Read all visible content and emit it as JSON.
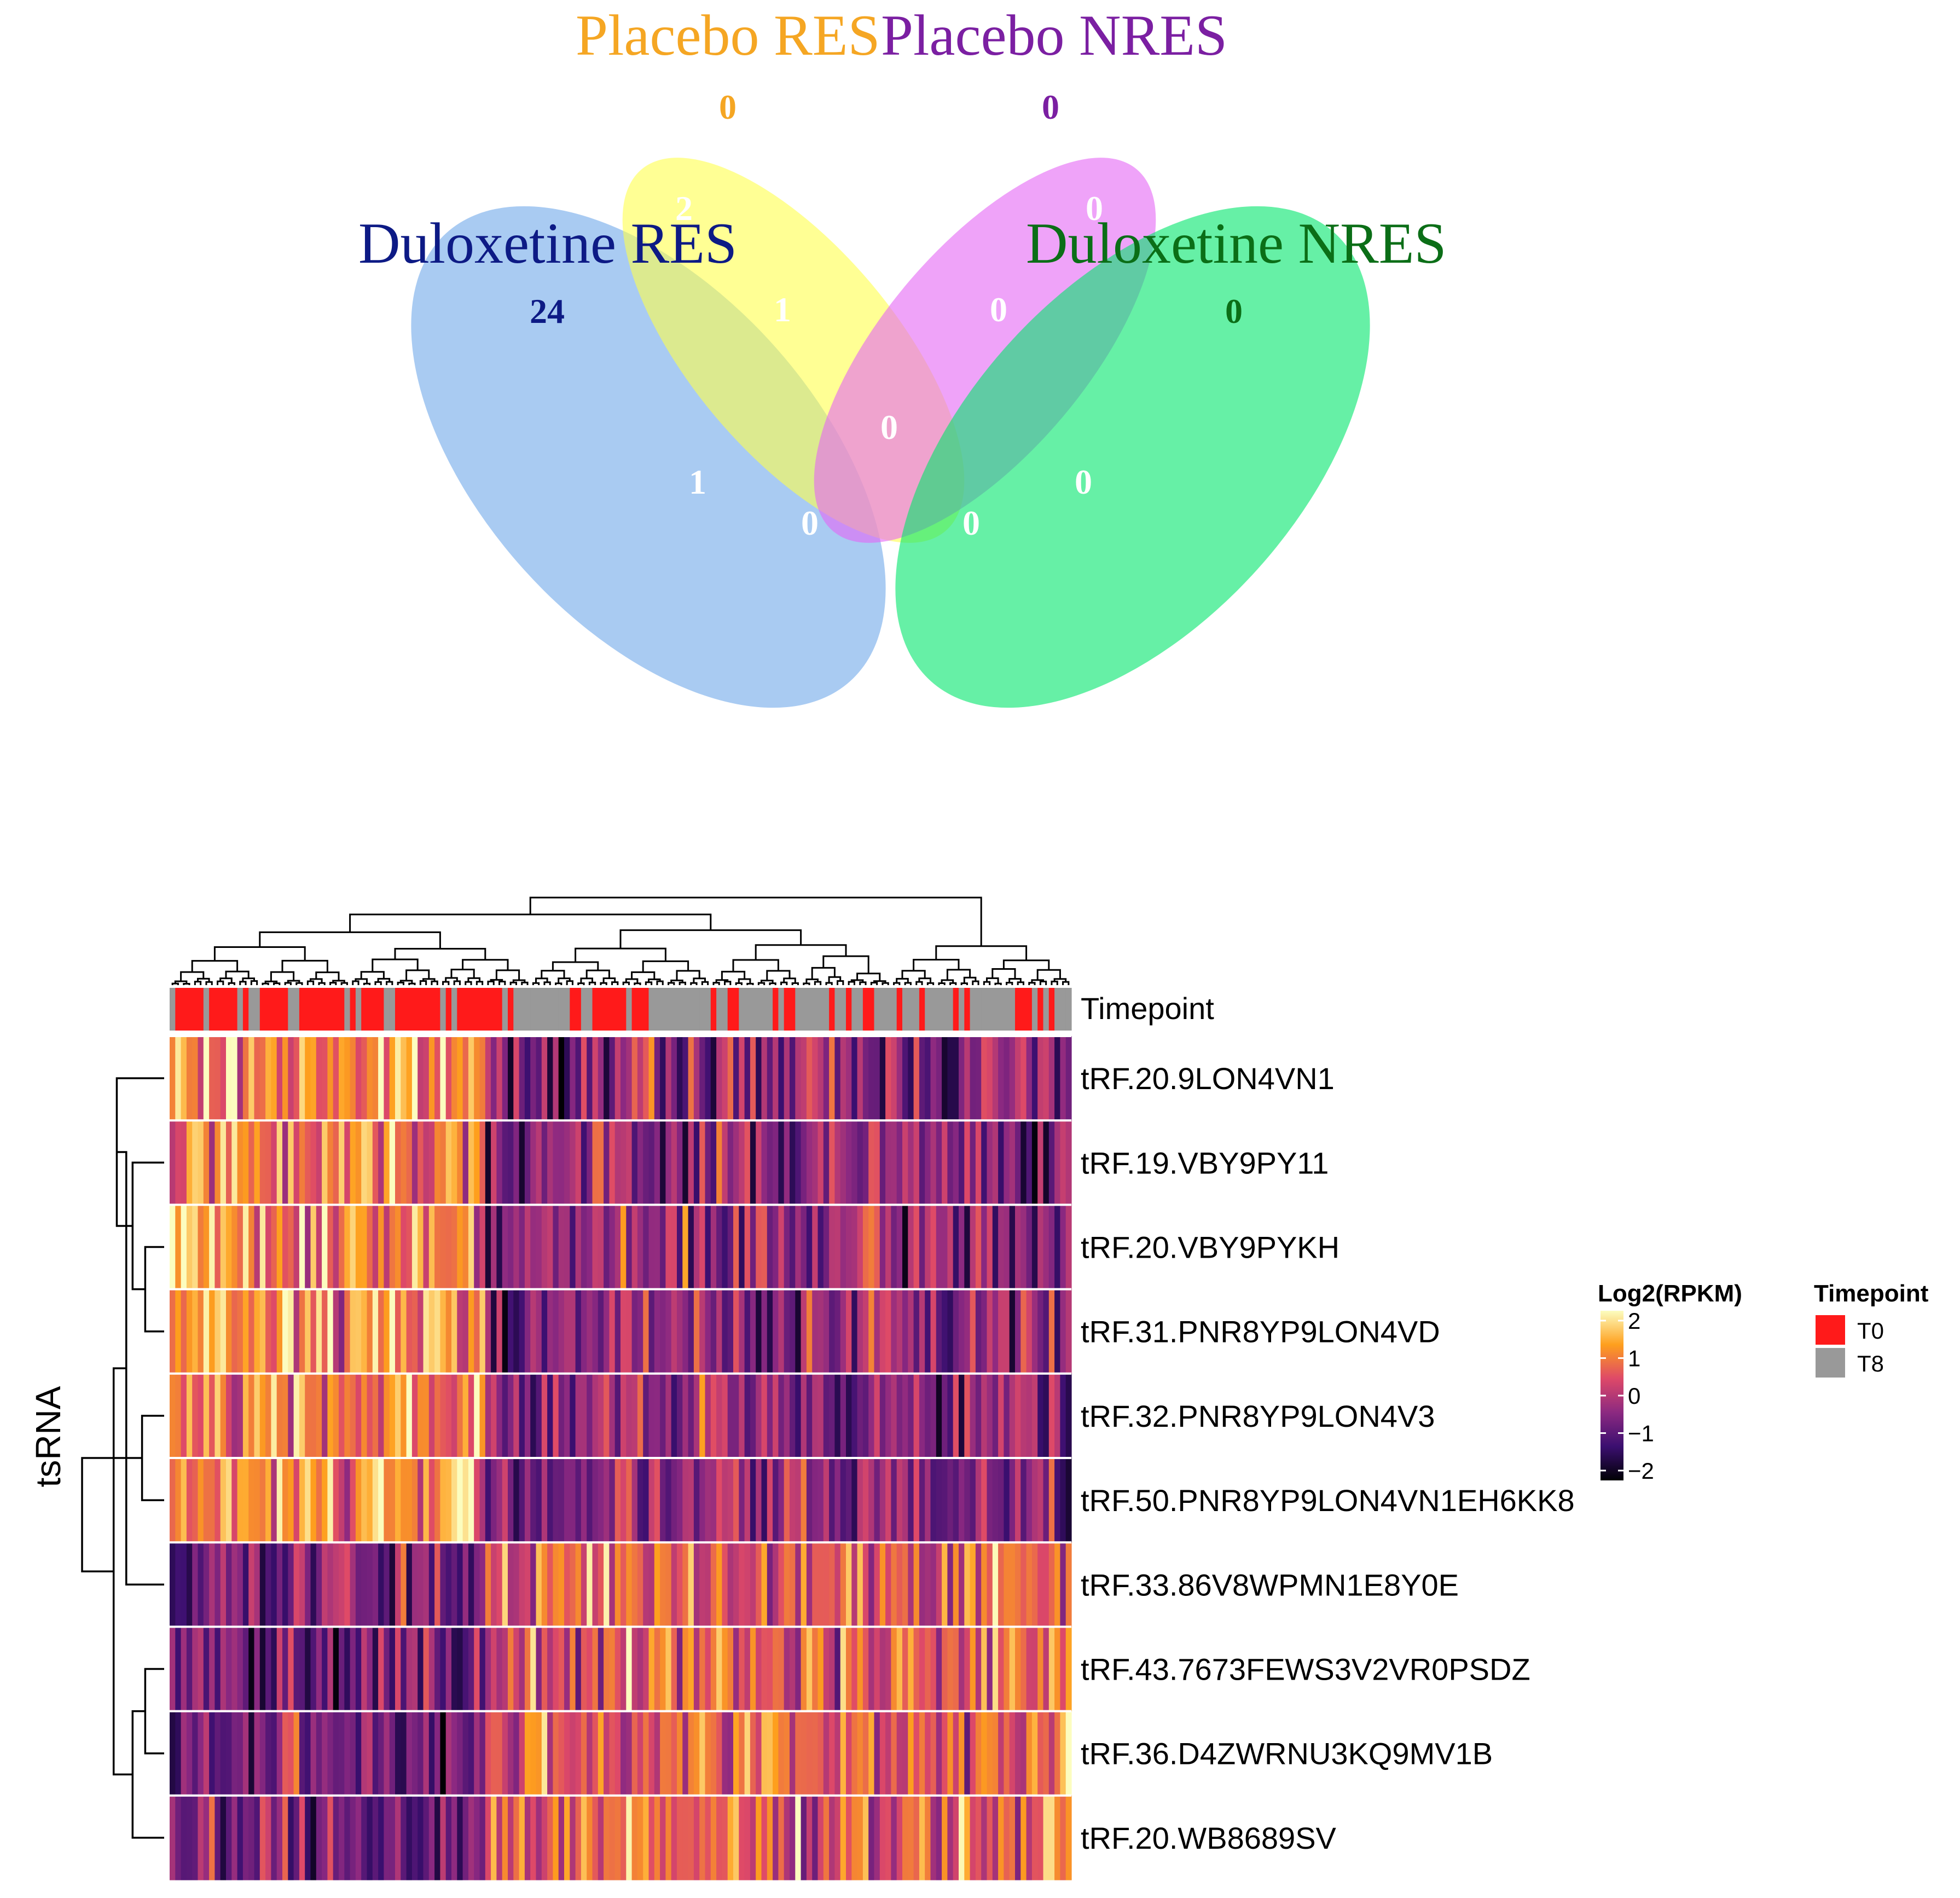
{
  "chart_data": [
    {
      "type": "venn",
      "sets": [
        {
          "key": "dul_res",
          "name": "Duloxetine RES",
          "color": "#6fa8ea",
          "text_color": "#0d1a85"
        },
        {
          "key": "pla_res",
          "name": "Placebo RES",
          "color": "#ffff4d",
          "text_color": "#f5a623"
        },
        {
          "key": "pla_nres",
          "name": "Placebo NRES",
          "color": "#e566f5",
          "text_color": "#7b1fa2"
        },
        {
          "key": "dul_nres",
          "name": "Duloxetine NRES",
          "color": "#00e66a",
          "text_color": "#0b6e17"
        }
      ],
      "regions": [
        {
          "sets": [
            "dul_res"
          ],
          "count": "24",
          "color": "#0d1a85"
        },
        {
          "sets": [
            "pla_res"
          ],
          "count": "0",
          "color": "#f5a623"
        },
        {
          "sets": [
            "pla_nres"
          ],
          "count": "0",
          "color": "#7b1fa2"
        },
        {
          "sets": [
            "dul_nres"
          ],
          "count": "0",
          "color": "#0b6e17"
        },
        {
          "sets": [
            "dul_res",
            "pla_res"
          ],
          "count": "2",
          "color": "#ffffff"
        },
        {
          "sets": [
            "pla_res",
            "pla_nres"
          ],
          "count": "0",
          "color": "#ffffff"
        },
        {
          "sets": [
            "pla_nres",
            "dul_nres"
          ],
          "count": "0",
          "color": "#ffffff"
        },
        {
          "sets": [
            "dul_res",
            "pla_res",
            "pla_nres"
          ],
          "count": "1",
          "color": "#ffffff"
        },
        {
          "sets": [
            "pla_res",
            "pla_nres",
            "dul_nres"
          ],
          "count": "0",
          "color": "#ffffff"
        },
        {
          "sets": [
            "dul_res",
            "pla_res",
            "pla_nres",
            "dul_nres"
          ],
          "count": "0",
          "color": "#ffffff"
        },
        {
          "sets": [
            "dul_res",
            "pla_nres"
          ],
          "count": "1",
          "color": "#ffffff"
        },
        {
          "sets": [
            "pla_res",
            "dul_nres"
          ],
          "count": "0",
          "color": "#ffffff"
        },
        {
          "sets": [
            "dul_res",
            "pla_nres",
            "dul_nres"
          ],
          "count": "0",
          "color": "#ffffff"
        },
        {
          "sets": [
            "dul_res",
            "pla_res",
            "dul_nres"
          ],
          "count": "0",
          "color": "#ffffff"
        },
        {
          "sets": [
            "dul_res",
            "dul_nres"
          ],
          "count": "0",
          "color": "#ffffff"
        }
      ]
    },
    {
      "type": "heatmap",
      "title": "",
      "ylabel": "tsRNA",
      "rows": [
        "tRF.20.9LON4VN1",
        "tRF.19.VBY9PY11",
        "tRF.20.VBY9PYKH",
        "tRF.31.PNR8YP9LON4VD",
        "tRF.32.PNR8YP9LON4V3",
        "tRF.50.PNR8YP9LON4VN1EH6KK8",
        "tRF.33.86V8WPMN1E8Y0E",
        "tRF.43.7673FEWS3V2VR0PSDZ",
        "tRF.36.D4ZWRNU3KQ9MV1B",
        "tRF.20.WB8689SV"
      ],
      "row_dendrogram": [
        [
          2,
          3,
          0.6
        ],
        [
          1,
          10,
          1.0
        ],
        [
          0,
          11,
          1.5
        ],
        [
          4,
          5,
          0.7
        ],
        [
          12,
          6,
          1.2
        ],
        [
          7,
          8,
          0.6
        ],
        [
          15,
          9,
          1.0
        ],
        [
          14,
          16,
          1.6
        ],
        [
          13,
          17,
          2.6
        ]
      ],
      "n_samples": 160,
      "annotation": {
        "name": "Timepoint",
        "levels": [
          {
            "label": "T0",
            "color": "#ff1a1a"
          },
          {
            "label": "T8",
            "color": "#999999"
          }
        ]
      },
      "color_scale": {
        "title": "Log2(RPKM)",
        "range": [
          -2,
          2
        ],
        "ticks": [
          "2",
          "1",
          "0",
          "−1",
          "−2"
        ],
        "stops": [
          "#000004",
          "#3b0f70",
          "#8c2981",
          "#de4968",
          "#fe9f1d",
          "#fcfdbf"
        ]
      }
    }
  ]
}
